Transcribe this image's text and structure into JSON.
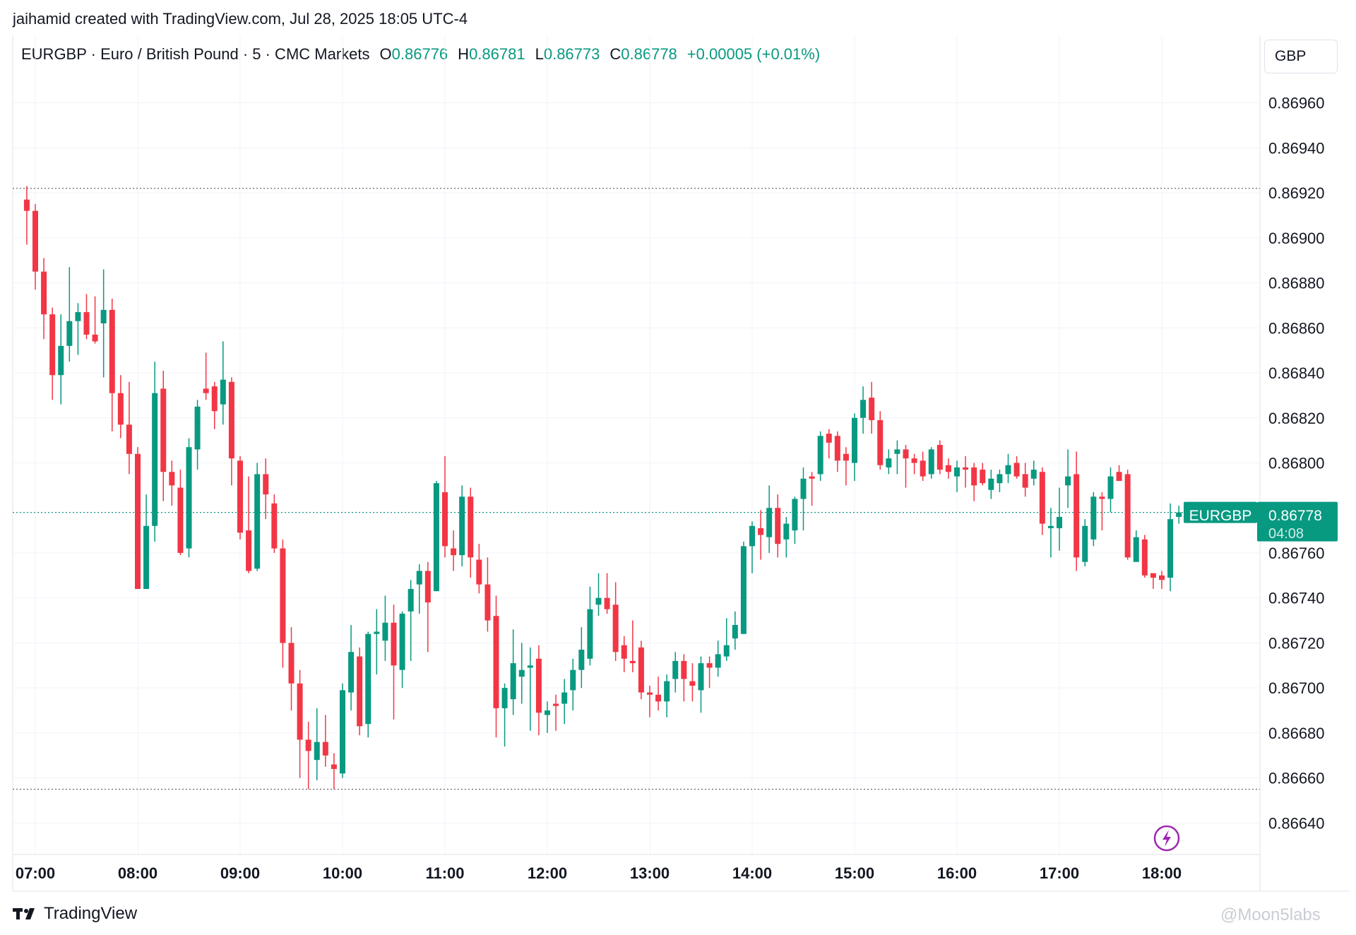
{
  "header": {
    "credit": "jaihamid created with TradingView.com, Jul 28, 2025 18:05 UTC-4",
    "symbol_line": "EURGBP · Euro / British Pound · 5 · CMC Markets",
    "open_label": "O",
    "open_value": "0.86776",
    "high_label": "H",
    "high_value": "0.86781",
    "low_label": "L",
    "low_value": "0.86773",
    "close_label": "C",
    "close_value": "0.86778",
    "change": "+0.00005 (+0.01%)"
  },
  "currency_button": "GBP",
  "last_price": {
    "symbol": "EURGBP",
    "price": "0.86778",
    "countdown": "04:08"
  },
  "footer": {
    "brand": "TradingView",
    "watermark": "@Moon5labs"
  },
  "colors": {
    "up": "#089981",
    "down": "#f23645",
    "grid": "#f0f3fa",
    "price_line": "#089981",
    "lightning": "#9c27b0"
  },
  "icons": {
    "lightning": "lightning-icon",
    "brand_logo": "tradingview-logo-icon"
  },
  "chart_data": {
    "type": "candlestick",
    "symbol": "EURGBP",
    "interval": "5",
    "y_ticks": [
      "0.86960",
      "0.86940",
      "0.86920",
      "0.86900",
      "0.86880",
      "0.86860",
      "0.86840",
      "0.86820",
      "0.86800",
      "0.86760",
      "0.86740",
      "0.86720",
      "0.86700",
      "0.86680",
      "0.86660",
      "0.86640"
    ],
    "ylim": [
      0.86626,
      0.8699
    ],
    "x_ticks": [
      "07:00",
      "08:00",
      "09:00",
      "10:00",
      "11:00",
      "12:00",
      "13:00",
      "14:00",
      "15:00",
      "16:00",
      "17:00",
      "18:00"
    ],
    "x_range": [
      "06:55",
      "18:25"
    ],
    "reference_levels": [
      0.86922,
      0.86655
    ],
    "candles": [
      {
        "t": "06:55",
        "o": 0.86917,
        "h": 0.86923,
        "l": 0.86897,
        "c": 0.86912
      },
      {
        "t": "07:00",
        "o": 0.86912,
        "h": 0.86915,
        "l": 0.86877,
        "c": 0.86885
      },
      {
        "t": "07:05",
        "o": 0.86885,
        "h": 0.86891,
        "l": 0.86855,
        "c": 0.86866
      },
      {
        "t": "07:10",
        "o": 0.86866,
        "h": 0.86869,
        "l": 0.86828,
        "c": 0.86839
      },
      {
        "t": "07:15",
        "o": 0.86839,
        "h": 0.86866,
        "l": 0.86826,
        "c": 0.86852
      },
      {
        "t": "07:20",
        "o": 0.86852,
        "h": 0.86887,
        "l": 0.86845,
        "c": 0.86863
      },
      {
        "t": "07:25",
        "o": 0.86863,
        "h": 0.86871,
        "l": 0.86848,
        "c": 0.86867
      },
      {
        "t": "07:30",
        "o": 0.86867,
        "h": 0.86875,
        "l": 0.86855,
        "c": 0.86857
      },
      {
        "t": "07:35",
        "o": 0.86857,
        "h": 0.86874,
        "l": 0.86853,
        "c": 0.86854
      },
      {
        "t": "07:40",
        "o": 0.86862,
        "h": 0.86886,
        "l": 0.86838,
        "c": 0.86868
      },
      {
        "t": "07:45",
        "o": 0.86868,
        "h": 0.86873,
        "l": 0.86814,
        "c": 0.86831
      },
      {
        "t": "07:50",
        "o": 0.86831,
        "h": 0.86839,
        "l": 0.86811,
        "c": 0.86817
      },
      {
        "t": "07:55",
        "o": 0.86817,
        "h": 0.86836,
        "l": 0.86795,
        "c": 0.86804
      },
      {
        "t": "08:00",
        "o": 0.86804,
        "h": 0.86807,
        "l": 0.86744,
        "c": 0.86744
      },
      {
        "t": "08:05",
        "o": 0.86744,
        "h": 0.86786,
        "l": 0.86744,
        "c": 0.86772
      },
      {
        "t": "08:10",
        "o": 0.86772,
        "h": 0.86845,
        "l": 0.86765,
        "c": 0.86831
      },
      {
        "t": "08:15",
        "o": 0.86833,
        "h": 0.86841,
        "l": 0.86783,
        "c": 0.86796
      },
      {
        "t": "08:20",
        "o": 0.86796,
        "h": 0.86801,
        "l": 0.86781,
        "c": 0.8679
      },
      {
        "t": "08:25",
        "o": 0.86789,
        "h": 0.86797,
        "l": 0.86759,
        "c": 0.8676
      },
      {
        "t": "08:30",
        "o": 0.86762,
        "h": 0.86811,
        "l": 0.86758,
        "c": 0.86807
      },
      {
        "t": "08:35",
        "o": 0.86806,
        "h": 0.86828,
        "l": 0.86797,
        "c": 0.86825
      },
      {
        "t": "08:40",
        "o": 0.86833,
        "h": 0.86849,
        "l": 0.86828,
        "c": 0.86831
      },
      {
        "t": "08:45",
        "o": 0.86834,
        "h": 0.86836,
        "l": 0.86815,
        "c": 0.86823
      },
      {
        "t": "08:50",
        "o": 0.86826,
        "h": 0.86854,
        "l": 0.86817,
        "c": 0.86837
      },
      {
        "t": "08:55",
        "o": 0.86836,
        "h": 0.86838,
        "l": 0.8679,
        "c": 0.86802
      },
      {
        "t": "09:00",
        "o": 0.86801,
        "h": 0.86803,
        "l": 0.86766,
        "c": 0.86769
      },
      {
        "t": "09:05",
        "o": 0.8677,
        "h": 0.86794,
        "l": 0.86751,
        "c": 0.86752
      },
      {
        "t": "09:10",
        "o": 0.86753,
        "h": 0.868,
        "l": 0.86752,
        "c": 0.86795
      },
      {
        "t": "09:15",
        "o": 0.86795,
        "h": 0.86802,
        "l": 0.86775,
        "c": 0.86786
      },
      {
        "t": "09:20",
        "o": 0.86782,
        "h": 0.86786,
        "l": 0.8676,
        "c": 0.86762
      },
      {
        "t": "09:25",
        "o": 0.86762,
        "h": 0.86766,
        "l": 0.86709,
        "c": 0.8672
      },
      {
        "t": "09:30",
        "o": 0.8672,
        "h": 0.86727,
        "l": 0.8669,
        "c": 0.86702
      },
      {
        "t": "09:35",
        "o": 0.86702,
        "h": 0.86708,
        "l": 0.8666,
        "c": 0.86677
      },
      {
        "t": "09:40",
        "o": 0.86677,
        "h": 0.86685,
        "l": 0.86655,
        "c": 0.86672
      },
      {
        "t": "09:45",
        "o": 0.86668,
        "h": 0.86691,
        "l": 0.86659,
        "c": 0.86676
      },
      {
        "t": "09:50",
        "o": 0.86676,
        "h": 0.86688,
        "l": 0.86665,
        "c": 0.8667
      },
      {
        "t": "09:55",
        "o": 0.86666,
        "h": 0.86671,
        "l": 0.86655,
        "c": 0.86664
      },
      {
        "t": "10:00",
        "o": 0.86662,
        "h": 0.86702,
        "l": 0.8666,
        "c": 0.86699
      },
      {
        "t": "10:05",
        "o": 0.86698,
        "h": 0.86728,
        "l": 0.8669,
        "c": 0.86716
      },
      {
        "t": "10:10",
        "o": 0.86714,
        "h": 0.86718,
        "l": 0.86679,
        "c": 0.86683
      },
      {
        "t": "10:15",
        "o": 0.86684,
        "h": 0.86725,
        "l": 0.86678,
        "c": 0.86724
      },
      {
        "t": "10:20",
        "o": 0.86724,
        "h": 0.86735,
        "l": 0.86706,
        "c": 0.86725
      },
      {
        "t": "10:25",
        "o": 0.86721,
        "h": 0.86741,
        "l": 0.86712,
        "c": 0.86729
      },
      {
        "t": "10:30",
        "o": 0.86729,
        "h": 0.86737,
        "l": 0.86686,
        "c": 0.8671
      },
      {
        "t": "10:35",
        "o": 0.86708,
        "h": 0.86734,
        "l": 0.867,
        "c": 0.86733
      },
      {
        "t": "10:40",
        "o": 0.86734,
        "h": 0.86748,
        "l": 0.86712,
        "c": 0.86744
      },
      {
        "t": "10:45",
        "o": 0.86746,
        "h": 0.86755,
        "l": 0.86733,
        "c": 0.86752
      },
      {
        "t": "10:50",
        "o": 0.86752,
        "h": 0.86756,
        "l": 0.86716,
        "c": 0.86738
      },
      {
        "t": "10:55",
        "o": 0.86743,
        "h": 0.86792,
        "l": 0.86743,
        "c": 0.86791
      },
      {
        "t": "11:00",
        "o": 0.86787,
        "h": 0.86803,
        "l": 0.86758,
        "c": 0.86763
      },
      {
        "t": "11:05",
        "o": 0.86762,
        "h": 0.8677,
        "l": 0.86752,
        "c": 0.86759
      },
      {
        "t": "11:10",
        "o": 0.86759,
        "h": 0.8679,
        "l": 0.86754,
        "c": 0.86785
      },
      {
        "t": "11:15",
        "o": 0.86785,
        "h": 0.86789,
        "l": 0.86749,
        "c": 0.86758
      },
      {
        "t": "11:20",
        "o": 0.86757,
        "h": 0.86764,
        "l": 0.86742,
        "c": 0.86746
      },
      {
        "t": "11:25",
        "o": 0.86746,
        "h": 0.86758,
        "l": 0.86725,
        "c": 0.8673
      },
      {
        "t": "11:30",
        "o": 0.86732,
        "h": 0.86741,
        "l": 0.86678,
        "c": 0.86691
      },
      {
        "t": "11:35",
        "o": 0.86691,
        "h": 0.86702,
        "l": 0.86674,
        "c": 0.867
      },
      {
        "t": "11:40",
        "o": 0.86695,
        "h": 0.86726,
        "l": 0.86688,
        "c": 0.86711
      },
      {
        "t": "11:45",
        "o": 0.86705,
        "h": 0.8672,
        "l": 0.86693,
        "c": 0.86708
      },
      {
        "t": "11:50",
        "o": 0.86709,
        "h": 0.86718,
        "l": 0.86681,
        "c": 0.8671
      },
      {
        "t": "11:55",
        "o": 0.86713,
        "h": 0.86719,
        "l": 0.86679,
        "c": 0.86689
      },
      {
        "t": "12:00",
        "o": 0.86688,
        "h": 0.86694,
        "l": 0.8668,
        "c": 0.8669
      },
      {
        "t": "12:05",
        "o": 0.86693,
        "h": 0.86697,
        "l": 0.86681,
        "c": 0.86692
      },
      {
        "t": "12:10",
        "o": 0.86693,
        "h": 0.86704,
        "l": 0.86684,
        "c": 0.86698
      },
      {
        "t": "12:15",
        "o": 0.86699,
        "h": 0.86713,
        "l": 0.8669,
        "c": 0.86708
      },
      {
        "t": "12:20",
        "o": 0.86708,
        "h": 0.86727,
        "l": 0.867,
        "c": 0.86717
      },
      {
        "t": "12:25",
        "o": 0.86713,
        "h": 0.86745,
        "l": 0.8671,
        "c": 0.86735
      },
      {
        "t": "12:30",
        "o": 0.86737,
        "h": 0.86751,
        "l": 0.86732,
        "c": 0.8674
      },
      {
        "t": "12:35",
        "o": 0.8674,
        "h": 0.86751,
        "l": 0.86733,
        "c": 0.86735
      },
      {
        "t": "12:40",
        "o": 0.86737,
        "h": 0.86747,
        "l": 0.86712,
        "c": 0.86716
      },
      {
        "t": "12:45",
        "o": 0.86719,
        "h": 0.86723,
        "l": 0.86707,
        "c": 0.86713
      },
      {
        "t": "12:50",
        "o": 0.86712,
        "h": 0.8673,
        "l": 0.86707,
        "c": 0.86711
      },
      {
        "t": "12:55",
        "o": 0.86718,
        "h": 0.86721,
        "l": 0.86695,
        "c": 0.86698
      },
      {
        "t": "13:00",
        "o": 0.86698,
        "h": 0.86701,
        "l": 0.86687,
        "c": 0.86697
      },
      {
        "t": "13:05",
        "o": 0.86697,
        "h": 0.86705,
        "l": 0.8669,
        "c": 0.86694
      },
      {
        "t": "13:10",
        "o": 0.86694,
        "h": 0.86706,
        "l": 0.86687,
        "c": 0.86703
      },
      {
        "t": "13:15",
        "o": 0.86704,
        "h": 0.86716,
        "l": 0.86698,
        "c": 0.86712
      },
      {
        "t": "13:20",
        "o": 0.86712,
        "h": 0.86715,
        "l": 0.86694,
        "c": 0.86704
      },
      {
        "t": "13:25",
        "o": 0.86703,
        "h": 0.86711,
        "l": 0.86694,
        "c": 0.86701
      },
      {
        "t": "13:30",
        "o": 0.86699,
        "h": 0.86714,
        "l": 0.86689,
        "c": 0.86711
      },
      {
        "t": "13:35",
        "o": 0.86711,
        "h": 0.86714,
        "l": 0.867,
        "c": 0.86709
      },
      {
        "t": "13:40",
        "o": 0.86709,
        "h": 0.86721,
        "l": 0.86705,
        "c": 0.86715
      },
      {
        "t": "13:45",
        "o": 0.86714,
        "h": 0.86731,
        "l": 0.86712,
        "c": 0.86719
      },
      {
        "t": "13:50",
        "o": 0.86722,
        "h": 0.86734,
        "l": 0.86717,
        "c": 0.86728
      },
      {
        "t": "13:55",
        "o": 0.86724,
        "h": 0.86765,
        "l": 0.86724,
        "c": 0.86763
      },
      {
        "t": "14:00",
        "o": 0.86763,
        "h": 0.86774,
        "l": 0.86751,
        "c": 0.86772
      },
      {
        "t": "14:05",
        "o": 0.86771,
        "h": 0.86779,
        "l": 0.86757,
        "c": 0.86768
      },
      {
        "t": "14:10",
        "o": 0.86767,
        "h": 0.8679,
        "l": 0.8676,
        "c": 0.8678
      },
      {
        "t": "14:15",
        "o": 0.8678,
        "h": 0.86786,
        "l": 0.86758,
        "c": 0.86764
      },
      {
        "t": "14:20",
        "o": 0.86766,
        "h": 0.86776,
        "l": 0.86758,
        "c": 0.86773
      },
      {
        "t": "14:25",
        "o": 0.8677,
        "h": 0.86785,
        "l": 0.86764,
        "c": 0.86784
      },
      {
        "t": "14:30",
        "o": 0.86784,
        "h": 0.86798,
        "l": 0.8677,
        "c": 0.86793
      },
      {
        "t": "14:35",
        "o": 0.86794,
        "h": 0.86796,
        "l": 0.86781,
        "c": 0.86793
      },
      {
        "t": "14:40",
        "o": 0.86795,
        "h": 0.86814,
        "l": 0.86792,
        "c": 0.86812
      },
      {
        "t": "14:45",
        "o": 0.86813,
        "h": 0.86815,
        "l": 0.86802,
        "c": 0.86809
      },
      {
        "t": "14:50",
        "o": 0.86812,
        "h": 0.86814,
        "l": 0.86796,
        "c": 0.86801
      },
      {
        "t": "14:55",
        "o": 0.86804,
        "h": 0.86807,
        "l": 0.8679,
        "c": 0.86801
      },
      {
        "t": "15:00",
        "o": 0.868,
        "h": 0.86822,
        "l": 0.86792,
        "c": 0.8682
      },
      {
        "t": "15:05",
        "o": 0.8682,
        "h": 0.86834,
        "l": 0.86813,
        "c": 0.86828
      },
      {
        "t": "15:10",
        "o": 0.86829,
        "h": 0.86836,
        "l": 0.86813,
        "c": 0.86819
      },
      {
        "t": "15:15",
        "o": 0.86819,
        "h": 0.86823,
        "l": 0.86797,
        "c": 0.86799
      },
      {
        "t": "15:20",
        "o": 0.86798,
        "h": 0.86806,
        "l": 0.86795,
        "c": 0.86802
      },
      {
        "t": "15:25",
        "o": 0.86804,
        "h": 0.8681,
        "l": 0.86795,
        "c": 0.86806
      },
      {
        "t": "15:30",
        "o": 0.86806,
        "h": 0.86808,
        "l": 0.86789,
        "c": 0.86802
      },
      {
        "t": "15:35",
        "o": 0.86802,
        "h": 0.86804,
        "l": 0.86795,
        "c": 0.868
      },
      {
        "t": "15:40",
        "o": 0.86801,
        "h": 0.86805,
        "l": 0.86792,
        "c": 0.86794
      },
      {
        "t": "15:45",
        "o": 0.86795,
        "h": 0.86807,
        "l": 0.86793,
        "c": 0.86806
      },
      {
        "t": "15:50",
        "o": 0.86808,
        "h": 0.8681,
        "l": 0.86795,
        "c": 0.86797
      },
      {
        "t": "15:55",
        "o": 0.86799,
        "h": 0.86802,
        "l": 0.86793,
        "c": 0.86796
      },
      {
        "t": "16:00",
        "o": 0.86794,
        "h": 0.86801,
        "l": 0.86787,
        "c": 0.86798
      },
      {
        "t": "16:05",
        "o": 0.86798,
        "h": 0.86803,
        "l": 0.86789,
        "c": 0.86797
      },
      {
        "t": "16:10",
        "o": 0.86798,
        "h": 0.868,
        "l": 0.86783,
        "c": 0.8679
      },
      {
        "t": "16:15",
        "o": 0.86797,
        "h": 0.868,
        "l": 0.8679,
        "c": 0.86791
      },
      {
        "t": "16:20",
        "o": 0.86788,
        "h": 0.86797,
        "l": 0.86784,
        "c": 0.86793
      },
      {
        "t": "16:25",
        "o": 0.86791,
        "h": 0.86797,
        "l": 0.86787,
        "c": 0.86795
      },
      {
        "t": "16:30",
        "o": 0.86795,
        "h": 0.86804,
        "l": 0.86791,
        "c": 0.86799
      },
      {
        "t": "16:35",
        "o": 0.868,
        "h": 0.86803,
        "l": 0.86793,
        "c": 0.86794
      },
      {
        "t": "16:40",
        "o": 0.86795,
        "h": 0.868,
        "l": 0.86785,
        "c": 0.86789
      },
      {
        "t": "16:45",
        "o": 0.86793,
        "h": 0.86801,
        "l": 0.8679,
        "c": 0.86797
      },
      {
        "t": "16:50",
        "o": 0.86796,
        "h": 0.86798,
        "l": 0.86768,
        "c": 0.86773
      },
      {
        "t": "16:55",
        "o": 0.86771,
        "h": 0.8678,
        "l": 0.86758,
        "c": 0.86772
      },
      {
        "t": "17:00",
        "o": 0.86771,
        "h": 0.86789,
        "l": 0.86761,
        "c": 0.86776
      },
      {
        "t": "17:05",
        "o": 0.8679,
        "h": 0.86806,
        "l": 0.8678,
        "c": 0.86794
      },
      {
        "t": "17:10",
        "o": 0.86795,
        "h": 0.86805,
        "l": 0.86752,
        "c": 0.86758
      },
      {
        "t": "17:15",
        "o": 0.86756,
        "h": 0.86775,
        "l": 0.86754,
        "c": 0.86772
      },
      {
        "t": "17:20",
        "o": 0.86766,
        "h": 0.86787,
        "l": 0.86763,
        "c": 0.86785
      },
      {
        "t": "17:25",
        "o": 0.86785,
        "h": 0.86787,
        "l": 0.8677,
        "c": 0.86784
      },
      {
        "t": "17:30",
        "o": 0.86784,
        "h": 0.86798,
        "l": 0.86778,
        "c": 0.86794
      },
      {
        "t": "17:35",
        "o": 0.86796,
        "h": 0.86799,
        "l": 0.86792,
        "c": 0.86792
      },
      {
        "t": "17:40",
        "o": 0.86795,
        "h": 0.86797,
        "l": 0.86757,
        "c": 0.86758
      },
      {
        "t": "17:45",
        "o": 0.86756,
        "h": 0.8677,
        "l": 0.86756,
        "c": 0.86767
      },
      {
        "t": "17:50",
        "o": 0.86766,
        "h": 0.86768,
        "l": 0.86749,
        "c": 0.8675
      },
      {
        "t": "17:55",
        "o": 0.86751,
        "h": 0.86751,
        "l": 0.86744,
        "c": 0.86749
      },
      {
        "t": "18:00",
        "o": 0.8675,
        "h": 0.86752,
        "l": 0.86744,
        "c": 0.86748
      },
      {
        "t": "18:05",
        "o": 0.86749,
        "h": 0.86782,
        "l": 0.86743,
        "c": 0.86775
      },
      {
        "t": "18:10",
        "o": 0.86776,
        "h": 0.86781,
        "l": 0.86773,
        "c": 0.86778
      }
    ]
  }
}
